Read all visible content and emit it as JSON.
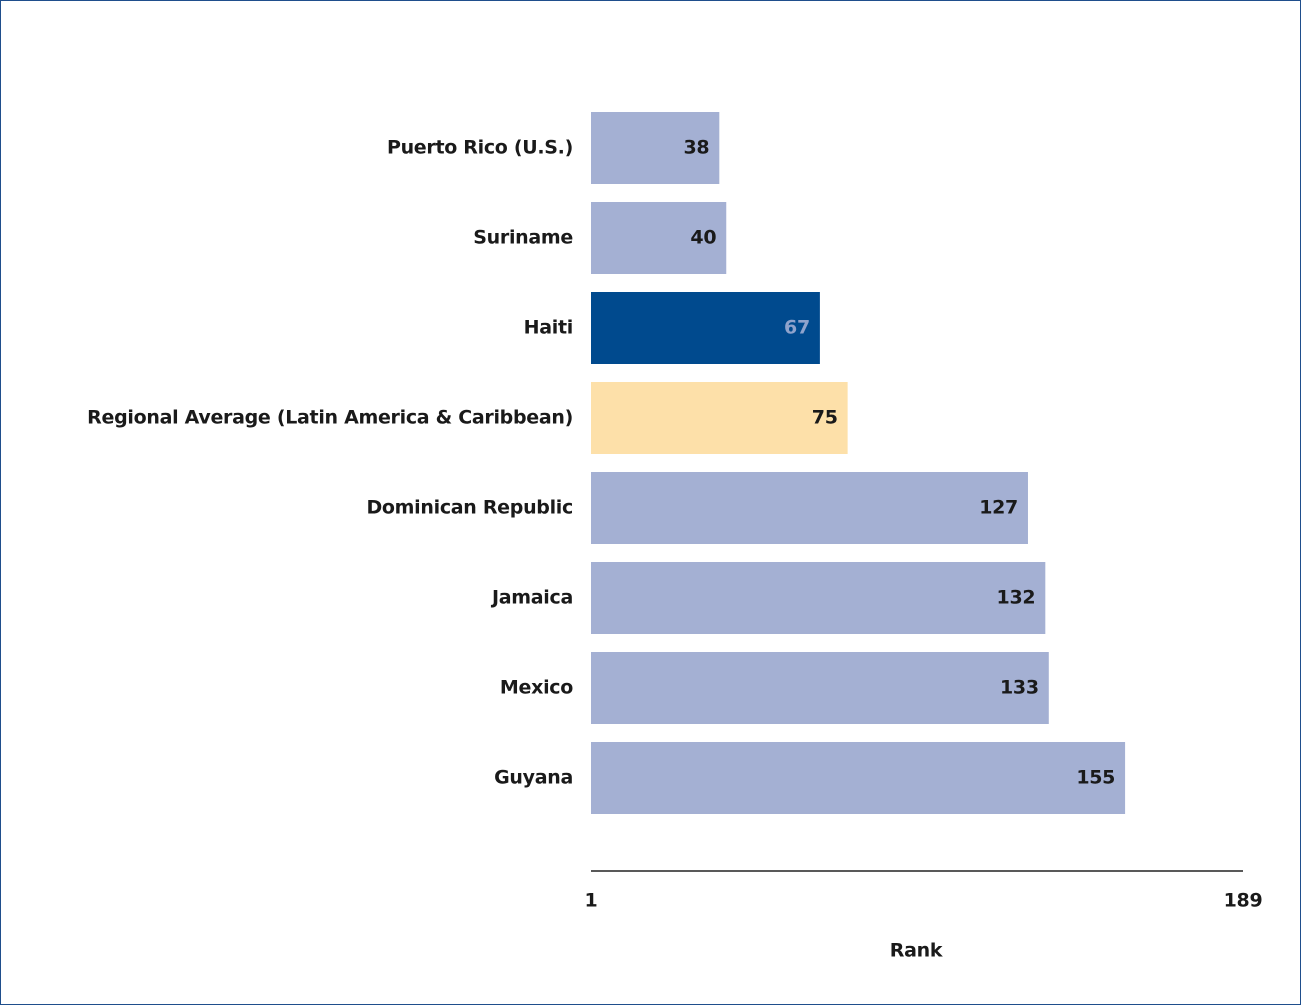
{
  "chart_data": {
    "type": "barh",
    "categories": [
      "Puerto Rico (U.S.)",
      "Suriname",
      "Haiti",
      "Regional Average (Latin America & Caribbean)",
      "Dominican Republic",
      "Jamaica",
      "Mexico",
      "Guyana"
    ],
    "values": [
      38,
      40,
      67,
      75,
      127,
      132,
      133,
      155
    ],
    "colors": [
      "#a4b0d3",
      "#a4b0d3",
      "#004a8e",
      "#fde0a9",
      "#a4b0d3",
      "#a4b0d3",
      "#a4b0d3",
      "#a4b0d3"
    ],
    "xlim": [
      1,
      189
    ],
    "xticks": [
      1,
      189
    ],
    "xlabel": "Rank"
  }
}
